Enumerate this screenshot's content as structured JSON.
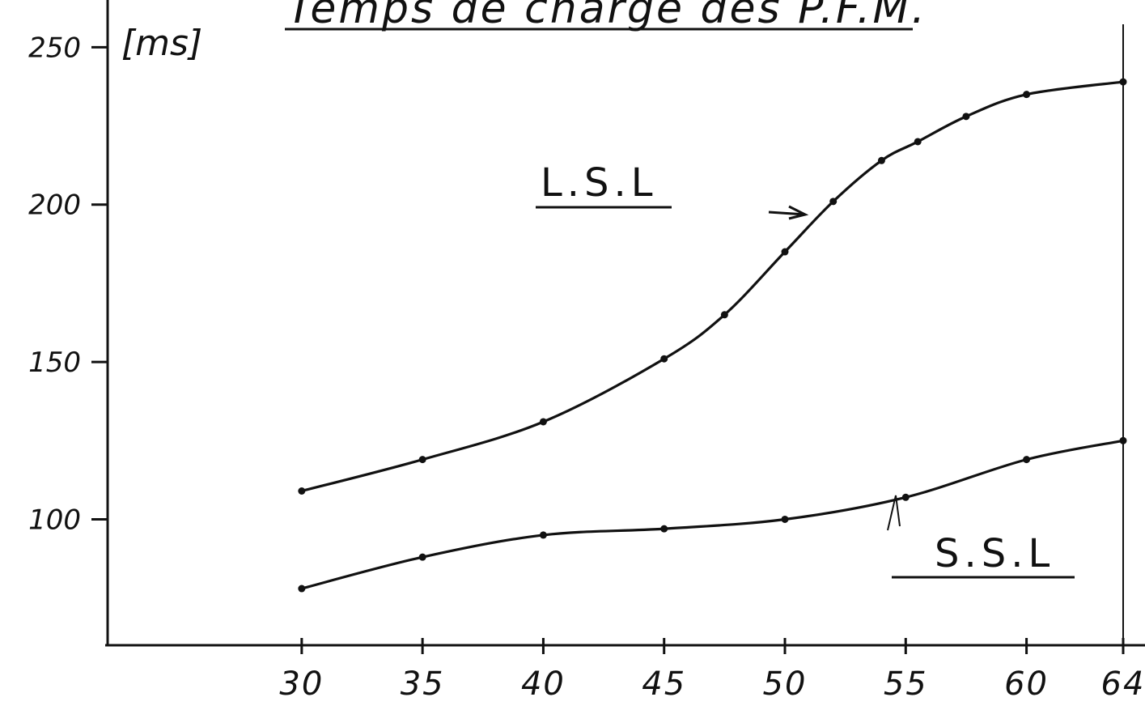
{
  "chart_data": {
    "type": "line",
    "title": "Temps de charge des P.F.M.",
    "ylabel": "[ms]",
    "xlabel": "",
    "ylim": [
      60,
      265
    ],
    "xlim": [
      22,
      64
    ],
    "yticks": [
      {
        "value": 250,
        "label": "250"
      },
      {
        "value": 200,
        "label": "200"
      },
      {
        "value": 150,
        "label": "150"
      },
      {
        "value": 100,
        "label": "100"
      }
    ],
    "xticks": [
      {
        "value": 30,
        "label": "30"
      },
      {
        "value": 35,
        "label": "35"
      },
      {
        "value": 40,
        "label": "40"
      },
      {
        "value": 45,
        "label": "45"
      },
      {
        "value": 50,
        "label": "50"
      },
      {
        "value": 55,
        "label": "55"
      },
      {
        "value": 60,
        "label": "60"
      },
      {
        "value": 64,
        "label": "64"
      }
    ],
    "series": [
      {
        "name": "L.S.L",
        "x": [
          30,
          35,
          40,
          45,
          47.5,
          50,
          52,
          54,
          55.5,
          57.5,
          60,
          64
        ],
        "y": [
          109,
          119,
          131,
          151,
          165,
          185,
          201,
          214,
          220,
          228,
          235,
          239
        ]
      },
      {
        "name": "S.S.L",
        "x": [
          30,
          35,
          40,
          45,
          50,
          55,
          60,
          64
        ],
        "y": [
          78,
          88,
          95,
          97,
          100,
          107,
          119,
          125
        ]
      }
    ]
  }
}
